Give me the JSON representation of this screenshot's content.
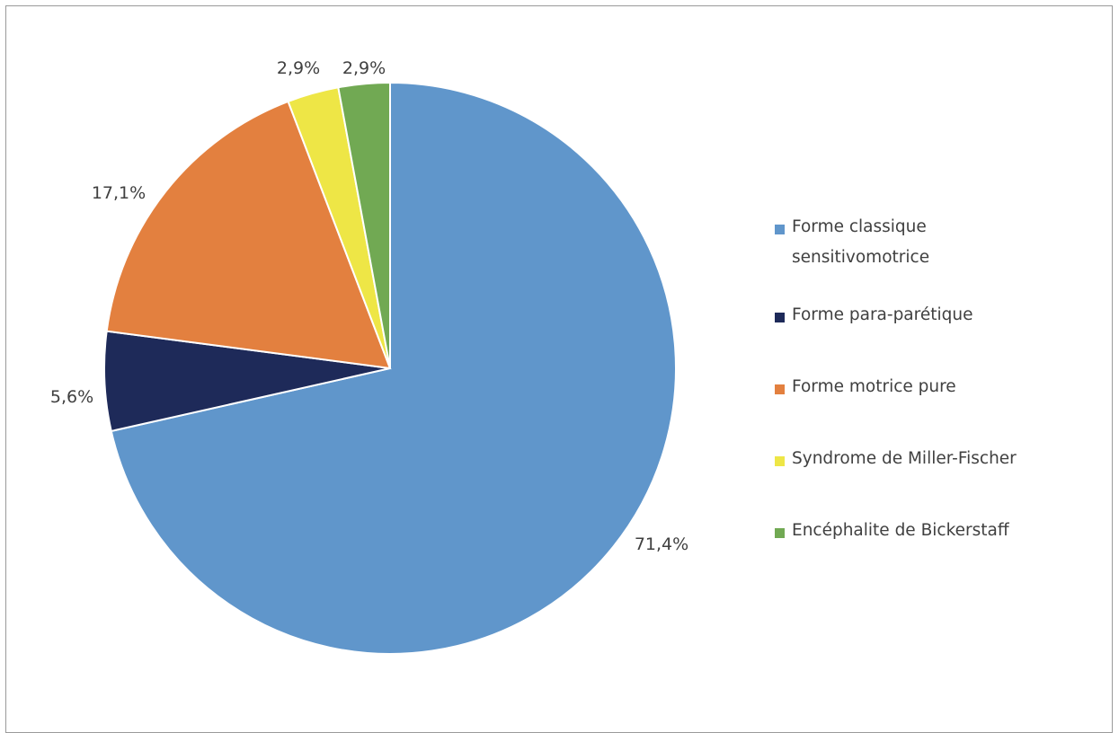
{
  "chart_data": {
    "type": "pie",
    "title": "",
    "categories": [
      "Forme classique sensitivomotrice",
      "Forme para-parétique",
      "Forme motrice pure",
      "Syndrome de Miller-Fischer",
      "Encéphalite de Bickerstaff"
    ],
    "values": [
      71.4,
      5.6,
      17.1,
      2.9,
      2.9
    ],
    "data_labels": [
      "71,4%",
      "5,6%",
      "17,1%",
      "2,9%",
      "2,9%"
    ],
    "colors": [
      "#6096CB",
      "#1E2A59",
      "#E3803F",
      "#EEE646",
      "#71A953"
    ],
    "start_angle": "12 o'clock, clockwise",
    "legend_position": "right"
  }
}
